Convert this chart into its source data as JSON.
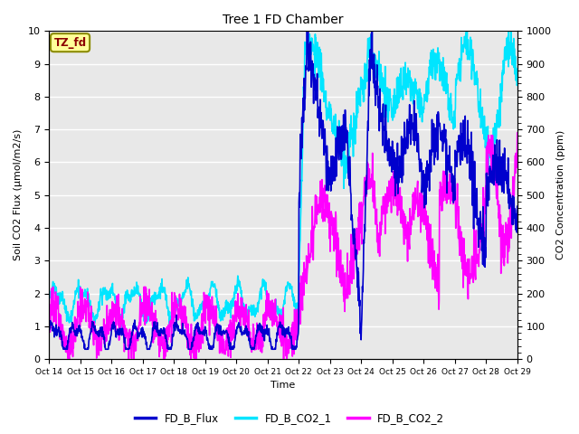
{
  "title": "Tree 1 FD Chamber",
  "xlabel": "Time",
  "ylabel_left": "Soil CO2 Flux (μmol/m2/s)",
  "ylabel_right": "CO2 Concentration (ppm)",
  "ylim_left": [
    0.0,
    10.0
  ],
  "ylim_right": [
    0,
    1000
  ],
  "xtick_labels": [
    "Oct 14",
    "Oct 15",
    "Oct 16",
    "Oct 17",
    "Oct 18",
    "Oct 19",
    "Oct 20",
    "Oct 21",
    "Oct 22",
    "Oct 23",
    "Oct 24",
    "Oct 25",
    "Oct 26",
    "Oct 27",
    "Oct 28",
    "Oct 29"
  ],
  "legend_labels": [
    "FD_B_Flux",
    "FD_B_CO2_1",
    "FD_B_CO2_2"
  ],
  "colors": {
    "flux": "#0000CD",
    "co2_1": "#00E5FF",
    "co2_2": "#FF00FF"
  },
  "annotation_text": "TZ_fd",
  "annotation_color": "#8B0000",
  "annotation_bg": "#FFFF99",
  "bg_color": "#E8E8E8",
  "line_width": 1.2,
  "fig_width": 6.4,
  "fig_height": 4.8,
  "dpi": 100
}
